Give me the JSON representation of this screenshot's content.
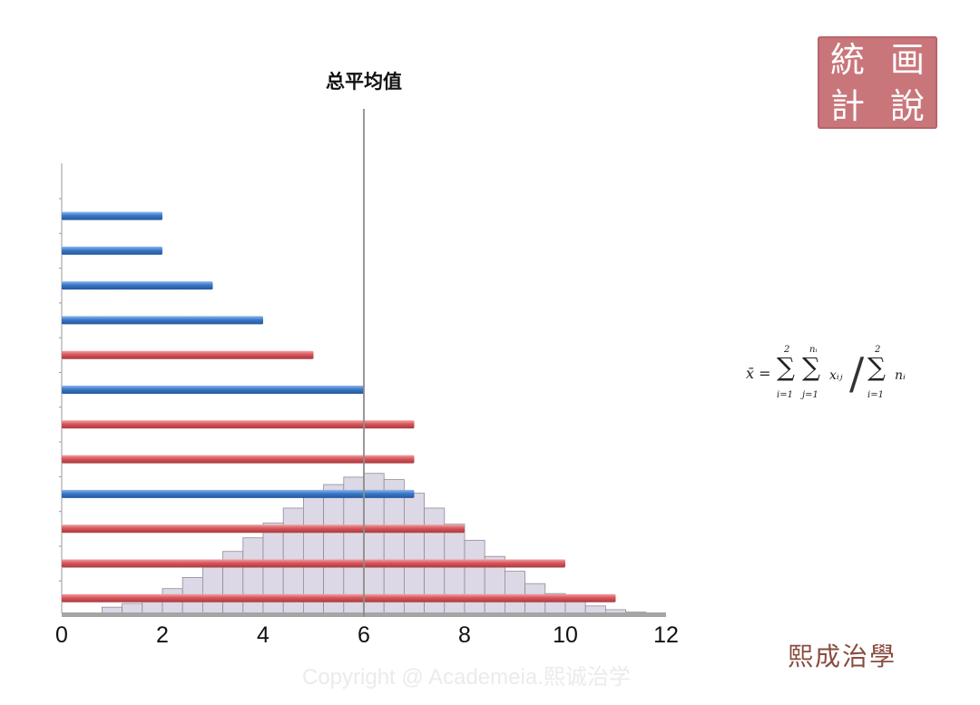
{
  "chart_data": {
    "type": "bar",
    "orientation": "horizontal",
    "title": "总平均值",
    "xlim": [
      0,
      12
    ],
    "xticks": [
      0,
      2,
      4,
      6,
      8,
      10,
      12
    ],
    "mean_line": 6,
    "bars": [
      {
        "value": 2,
        "group": "blue"
      },
      {
        "value": 2,
        "group": "blue"
      },
      {
        "value": 3,
        "group": "blue"
      },
      {
        "value": 4,
        "group": "blue"
      },
      {
        "value": 5,
        "group": "red"
      },
      {
        "value": 6,
        "group": "blue"
      },
      {
        "value": 7,
        "group": "red"
      },
      {
        "value": 7,
        "group": "red"
      },
      {
        "value": 7,
        "group": "blue"
      },
      {
        "value": 8,
        "group": "red"
      },
      {
        "value": 10,
        "group": "red"
      },
      {
        "value": 11,
        "group": "red"
      }
    ],
    "histogram": {
      "bin_width": 0.4,
      "bin_starts": [
        0.8,
        1.2,
        1.6,
        2.0,
        2.4,
        2.8,
        3.2,
        3.6,
        4.0,
        4.4,
        4.8,
        5.2,
        5.6,
        6.0,
        6.4,
        6.8,
        7.2,
        7.6,
        8.0,
        8.4,
        8.8,
        9.2,
        9.6,
        10.0,
        10.4,
        10.8,
        11.2
      ],
      "counts": [
        0.25,
        0.4,
        0.65,
        1.0,
        1.45,
        1.95,
        2.5,
        3.05,
        3.65,
        4.25,
        4.8,
        5.2,
        5.5,
        5.65,
        5.4,
        4.85,
        4.25,
        3.6,
        2.95,
        2.3,
        1.7,
        1.2,
        0.8,
        0.5,
        0.3,
        0.15,
        0.05
      ]
    },
    "colors": {
      "blue": "#3a78c9",
      "red": "#d8555a",
      "histogram_fill": "#dcd8e6",
      "histogram_stroke": "#8f8c99",
      "mean_line": "#8c8c8c"
    }
  },
  "seal": {
    "chars": [
      "統",
      "画",
      "計",
      "說"
    ],
    "color": "#c9767b"
  },
  "formula": {
    "lhs": "x̄ =",
    "sum_symbol": "∑",
    "upper_outer": "2",
    "lower_outer": "i=1",
    "upper_inner": "nᵢ",
    "lower_inner": "j=1",
    "term": "xᵢⱼ",
    "slash": "/",
    "upper_den": "2",
    "lower_den": "i=1",
    "den_term": "nᵢ"
  },
  "signature": "熙成治學",
  "copyright": "Copyright @ Academeia.熙诚治学"
}
